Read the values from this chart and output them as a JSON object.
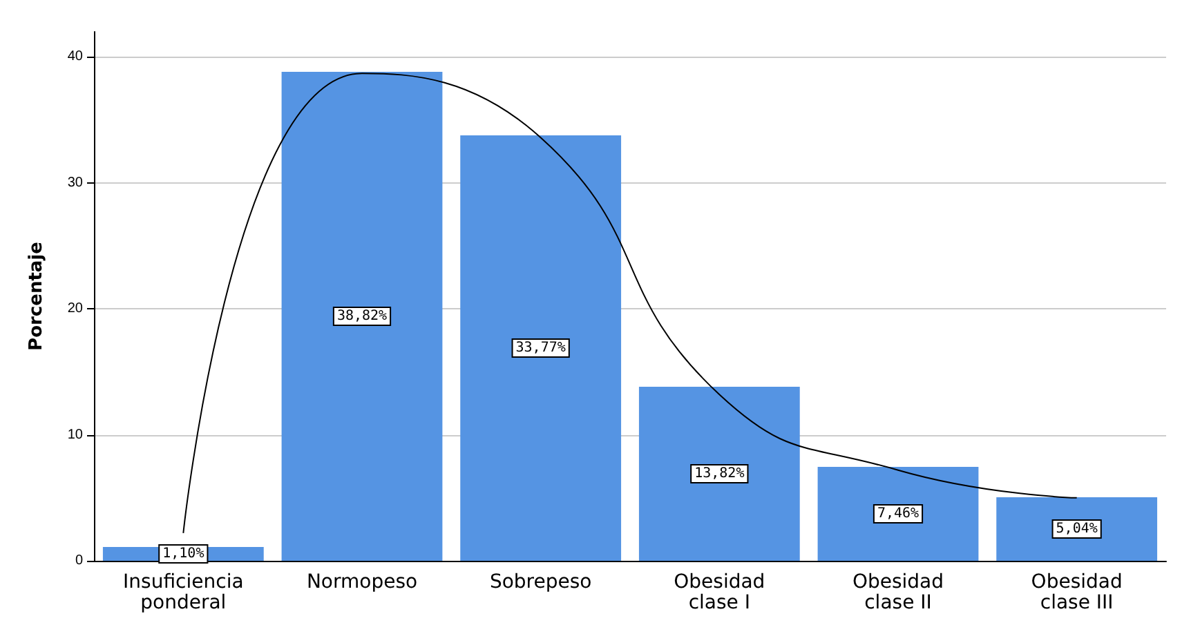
{
  "chart_data": {
    "type": "bar",
    "ylabel": "Porcentaje",
    "categories": [
      "Insuficiencia\nponderal",
      "Normopeso",
      "Sobrepeso",
      "Obesidad\nclase I",
      "Obesidad\nclase II",
      "Obesidad\nclase III"
    ],
    "series": [
      {
        "color": "#5594e3",
        "values": [
          1.1,
          38.82,
          33.77,
          13.82,
          7.46,
          5.04
        ],
        "value_labels": [
          "1,10%",
          "38,82%",
          "33,77%",
          "13,82%",
          "7,46%",
          "5,04%"
        ]
      },
      {
        "type": "line",
        "color": "#000000",
        "x": [
          "Insuficiencia\nponderal",
          "Normopeso",
          "Sobrepeso",
          "Obesidad\nclase I",
          "Obesidad\nclase II",
          "Obesidad\nclase III"
        ],
        "values": [
          2.2,
          38.7,
          33.6,
          13.2,
          7.2,
          5.0
        ],
        "marker": "none"
      }
    ],
    "ylim": [
      0,
      42
    ],
    "yticks": [
      0,
      10,
      20,
      30,
      40
    ],
    "grid": "y"
  }
}
